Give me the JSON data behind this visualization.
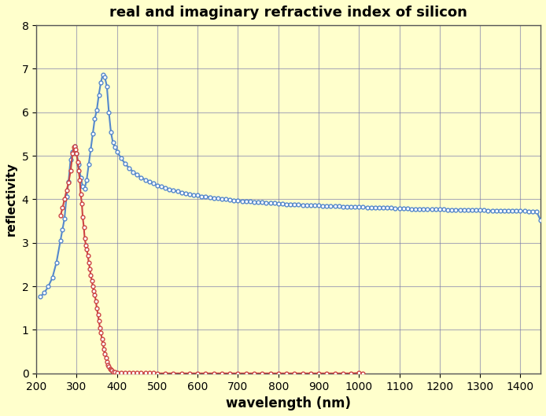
{
  "title": "real and imaginary refractive index of silicon",
  "xlabel": "wavelength (nm)",
  "ylabel": "reflectivity",
  "xlim": [
    200,
    1450
  ],
  "ylim": [
    0,
    8
  ],
  "xticks": [
    200,
    300,
    400,
    500,
    600,
    700,
    800,
    900,
    1000,
    1100,
    1200,
    1300,
    1400
  ],
  "yticks": [
    0,
    1,
    2,
    3,
    4,
    5,
    6,
    7,
    8
  ],
  "background_color": "#FFFFCC",
  "grid_color": "#7777AA",
  "n_color": "#5588CC",
  "k_color": "#CC4444",
  "n_data": [
    [
      210,
      1.76
    ],
    [
      220,
      1.85
    ],
    [
      230,
      2.0
    ],
    [
      240,
      2.2
    ],
    [
      250,
      2.55
    ],
    [
      260,
      3.05
    ],
    [
      265,
      3.3
    ],
    [
      270,
      3.56
    ],
    [
      275,
      4.07
    ],
    [
      280,
      4.4
    ],
    [
      285,
      4.92
    ],
    [
      290,
      5.1
    ],
    [
      295,
      5.22
    ],
    [
      300,
      5.05
    ],
    [
      305,
      4.8
    ],
    [
      310,
      4.5
    ],
    [
      315,
      4.3
    ],
    [
      320,
      4.25
    ],
    [
      325,
      4.45
    ],
    [
      330,
      4.8
    ],
    [
      335,
      5.15
    ],
    [
      340,
      5.5
    ],
    [
      345,
      5.85
    ],
    [
      350,
      6.05
    ],
    [
      355,
      6.4
    ],
    [
      360,
      6.68
    ],
    [
      365,
      6.87
    ],
    [
      370,
      6.8
    ],
    [
      375,
      6.6
    ],
    [
      380,
      6.0
    ],
    [
      385,
      5.55
    ],
    [
      390,
      5.3
    ],
    [
      395,
      5.2
    ],
    [
      400,
      5.1
    ],
    [
      410,
      4.95
    ],
    [
      420,
      4.82
    ],
    [
      430,
      4.72
    ],
    [
      440,
      4.63
    ],
    [
      450,
      4.56
    ],
    [
      460,
      4.5
    ],
    [
      470,
      4.45
    ],
    [
      480,
      4.4
    ],
    [
      490,
      4.36
    ],
    [
      500,
      4.32
    ],
    [
      510,
      4.29
    ],
    [
      520,
      4.26
    ],
    [
      530,
      4.23
    ],
    [
      540,
      4.21
    ],
    [
      550,
      4.18
    ],
    [
      560,
      4.16
    ],
    [
      570,
      4.14
    ],
    [
      580,
      4.12
    ],
    [
      590,
      4.1
    ],
    [
      600,
      4.09
    ],
    [
      610,
      4.07
    ],
    [
      620,
      4.06
    ],
    [
      630,
      4.05
    ],
    [
      640,
      4.03
    ],
    [
      650,
      4.02
    ],
    [
      660,
      4.01
    ],
    [
      670,
      4.0
    ],
    [
      680,
      3.99
    ],
    [
      690,
      3.98
    ],
    [
      700,
      3.97
    ],
    [
      710,
      3.96
    ],
    [
      720,
      3.96
    ],
    [
      730,
      3.95
    ],
    [
      740,
      3.94
    ],
    [
      750,
      3.93
    ],
    [
      760,
      3.93
    ],
    [
      770,
      3.92
    ],
    [
      780,
      3.91
    ],
    [
      790,
      3.91
    ],
    [
      800,
      3.9
    ],
    [
      810,
      3.9
    ],
    [
      820,
      3.89
    ],
    [
      830,
      3.89
    ],
    [
      840,
      3.88
    ],
    [
      850,
      3.88
    ],
    [
      860,
      3.87
    ],
    [
      870,
      3.87
    ],
    [
      880,
      3.86
    ],
    [
      890,
      3.86
    ],
    [
      900,
      3.86
    ],
    [
      910,
      3.85
    ],
    [
      920,
      3.85
    ],
    [
      930,
      3.84
    ],
    [
      940,
      3.84
    ],
    [
      950,
      3.84
    ],
    [
      960,
      3.83
    ],
    [
      970,
      3.83
    ],
    [
      980,
      3.83
    ],
    [
      990,
      3.82
    ],
    [
      1000,
      3.82
    ],
    [
      1010,
      3.82
    ],
    [
      1020,
      3.81
    ],
    [
      1030,
      3.81
    ],
    [
      1040,
      3.81
    ],
    [
      1050,
      3.8
    ],
    [
      1060,
      3.8
    ],
    [
      1070,
      3.8
    ],
    [
      1080,
      3.8
    ],
    [
      1090,
      3.79
    ],
    [
      1100,
      3.79
    ],
    [
      1110,
      3.79
    ],
    [
      1120,
      3.79
    ],
    [
      1130,
      3.78
    ],
    [
      1140,
      3.78
    ],
    [
      1150,
      3.78
    ],
    [
      1160,
      3.78
    ],
    [
      1170,
      3.77
    ],
    [
      1180,
      3.77
    ],
    [
      1190,
      3.77
    ],
    [
      1200,
      3.77
    ],
    [
      1210,
      3.77
    ],
    [
      1220,
      3.76
    ],
    [
      1230,
      3.76
    ],
    [
      1240,
      3.76
    ],
    [
      1250,
      3.76
    ],
    [
      1260,
      3.76
    ],
    [
      1270,
      3.75
    ],
    [
      1280,
      3.75
    ],
    [
      1290,
      3.75
    ],
    [
      1300,
      3.75
    ],
    [
      1310,
      3.75
    ],
    [
      1320,
      3.74
    ],
    [
      1330,
      3.74
    ],
    [
      1340,
      3.74
    ],
    [
      1350,
      3.74
    ],
    [
      1360,
      3.74
    ],
    [
      1370,
      3.73
    ],
    [
      1380,
      3.73
    ],
    [
      1390,
      3.73
    ],
    [
      1400,
      3.73
    ],
    [
      1410,
      3.73
    ],
    [
      1420,
      3.72
    ],
    [
      1430,
      3.72
    ],
    [
      1440,
      3.72
    ],
    [
      1450,
      3.52
    ]
  ],
  "k_data": [
    [
      260,
      3.62
    ],
    [
      265,
      3.8
    ],
    [
      270,
      4.0
    ],
    [
      275,
      4.2
    ],
    [
      280,
      4.38
    ],
    [
      285,
      4.65
    ],
    [
      290,
      5.05
    ],
    [
      293,
      5.2
    ],
    [
      295,
      5.22
    ],
    [
      298,
      5.15
    ],
    [
      300,
      5.05
    ],
    [
      303,
      4.85
    ],
    [
      305,
      4.65
    ],
    [
      308,
      4.45
    ],
    [
      310,
      4.12
    ],
    [
      313,
      3.9
    ],
    [
      315,
      3.6
    ],
    [
      318,
      3.35
    ],
    [
      320,
      3.1
    ],
    [
      323,
      2.95
    ],
    [
      325,
      2.85
    ],
    [
      328,
      2.7
    ],
    [
      330,
      2.55
    ],
    [
      333,
      2.4
    ],
    [
      335,
      2.25
    ],
    [
      338,
      2.12
    ],
    [
      340,
      2.0
    ],
    [
      343,
      1.9
    ],
    [
      345,
      1.8
    ],
    [
      348,
      1.65
    ],
    [
      350,
      1.5
    ],
    [
      353,
      1.35
    ],
    [
      355,
      1.2
    ],
    [
      358,
      1.05
    ],
    [
      360,
      0.93
    ],
    [
      363,
      0.8
    ],
    [
      365,
      0.68
    ],
    [
      368,
      0.55
    ],
    [
      370,
      0.45
    ],
    [
      373,
      0.35
    ],
    [
      375,
      0.27
    ],
    [
      378,
      0.2
    ],
    [
      380,
      0.15
    ],
    [
      383,
      0.11
    ],
    [
      385,
      0.08
    ],
    [
      388,
      0.06
    ],
    [
      390,
      0.04
    ],
    [
      395,
      0.03
    ],
    [
      400,
      0.02
    ],
    [
      410,
      0.01
    ],
    [
      420,
      0.01
    ],
    [
      430,
      0.01
    ],
    [
      440,
      0.01
    ],
    [
      450,
      0.01
    ],
    [
      460,
      0.01
    ],
    [
      470,
      0.01
    ],
    [
      480,
      0.01
    ],
    [
      490,
      0.01
    ],
    [
      500,
      0.0
    ],
    [
      520,
      0.0
    ],
    [
      540,
      0.0
    ],
    [
      560,
      0.0
    ],
    [
      580,
      0.0
    ],
    [
      600,
      0.0
    ],
    [
      620,
      0.0
    ],
    [
      640,
      0.0
    ],
    [
      660,
      0.0
    ],
    [
      680,
      0.0
    ],
    [
      700,
      0.0
    ],
    [
      720,
      0.0
    ],
    [
      740,
      0.0
    ],
    [
      760,
      0.0
    ],
    [
      780,
      0.0
    ],
    [
      800,
      0.0
    ],
    [
      820,
      0.0
    ],
    [
      840,
      0.0
    ],
    [
      860,
      0.0
    ],
    [
      880,
      0.0
    ],
    [
      900,
      0.0
    ],
    [
      920,
      0.0
    ],
    [
      940,
      0.0
    ],
    [
      960,
      0.0
    ],
    [
      980,
      0.0
    ],
    [
      1000,
      0.01
    ],
    [
      1010,
      0.0
    ]
  ]
}
